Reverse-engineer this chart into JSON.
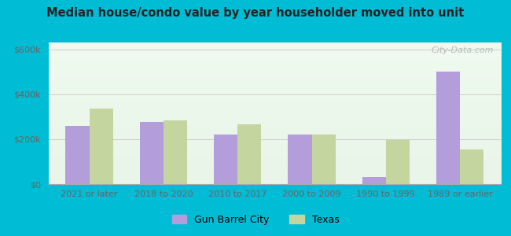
{
  "title": "Median house/condo value by year householder moved into unit",
  "categories": [
    "2021 or later",
    "2018 to 2020",
    "2010 to 2017",
    "2000 to 2009",
    "1990 to 1999",
    "1989 or earlier"
  ],
  "gun_barrel_city": [
    260000,
    275000,
    220000,
    220000,
    30000,
    500000
  ],
  "texas": [
    335000,
    285000,
    265000,
    220000,
    195000,
    155000
  ],
  "gun_barrel_color": "#b39ddb",
  "texas_color": "#c5d5a0",
  "ylabel_ticks": [
    0,
    200000,
    400000,
    600000
  ],
  "ylabel_labels": [
    "$0",
    "$200k",
    "$400k",
    "$600k"
  ],
  "ylim": [
    0,
    630000
  ],
  "outer_bg": "#00bcd4",
  "plot_bg_top": "#f0faf0",
  "plot_bg_bottom": "#e8f5e8",
  "watermark": "City-Data.com",
  "legend_labels": [
    "Gun Barrel City",
    "Texas"
  ],
  "bar_width": 0.32
}
